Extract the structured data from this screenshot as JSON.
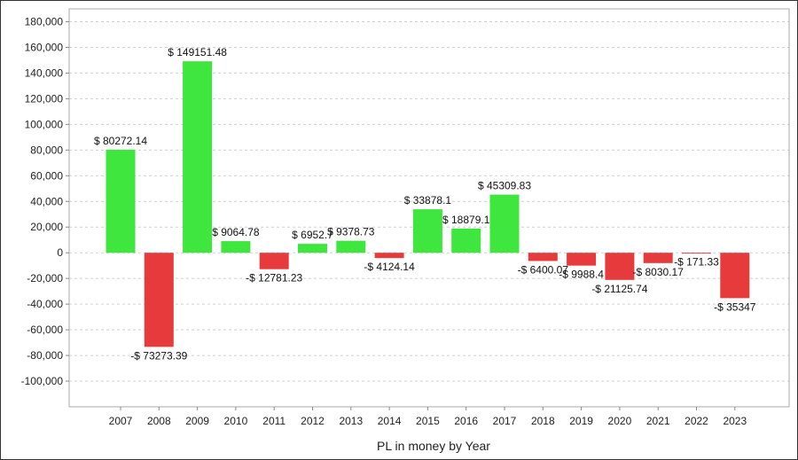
{
  "chart_data": {
    "type": "bar",
    "title": "",
    "xlabel": "PL in money by Year",
    "ylabel": "",
    "ylim": [
      -120000,
      190000
    ],
    "yticks": [
      -100000,
      -80000,
      -60000,
      -40000,
      -20000,
      0,
      20000,
      40000,
      60000,
      80000,
      100000,
      120000,
      140000,
      160000,
      180000
    ],
    "ytick_labels": [
      "-100,000",
      "-80,000",
      "-60,000",
      "-40,000",
      "-20,000",
      "0",
      "20,000",
      "40,000",
      "60,000",
      "80,000",
      "100,000",
      "120,000",
      "140,000",
      "160,000",
      "180,000"
    ],
    "grid": true,
    "legend": "none",
    "categories": [
      "2007",
      "2008",
      "2009",
      "2010",
      "2011",
      "2012",
      "2013",
      "2014",
      "2015",
      "2016",
      "2017",
      "2018",
      "2019",
      "2020",
      "2021",
      "2022",
      "2023"
    ],
    "values": [
      80272.14,
      -73273.39,
      149151.48,
      9064.78,
      -12781.23,
      6952.7,
      9378.73,
      -4124.14,
      33878.1,
      18879.1,
      45309.83,
      -6400.07,
      -9988.4,
      -21125.74,
      -8030.17,
      -171.33,
      -35347
    ],
    "data_labels": [
      "$ 80272.14",
      "-$ 73273.39",
      "$ 149151.48",
      "$ 9064.78",
      "-$ 12781.23",
      "$ 6952.7",
      "$ 9378.73",
      "-$ 4124.14",
      "$ 33878.1",
      "$ 18879.1",
      "$ 45309.83",
      "-$ 6400.07",
      "-$ 9988.4",
      "-$ 21125.74",
      "-$ 8030.17",
      "-$ 171.33",
      "-$ 35347"
    ],
    "colors": {
      "positive": "#3ee63e",
      "negative": "#e63a3c"
    }
  }
}
